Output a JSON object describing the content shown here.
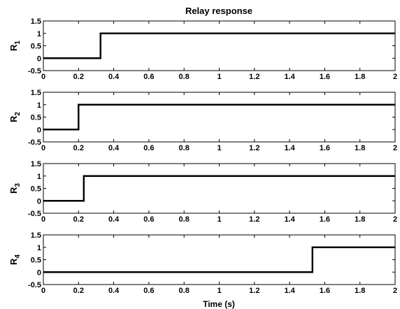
{
  "chart_data": {
    "type": "line",
    "title": "Relay response",
    "xlabel": "Time (s)",
    "xlim": [
      0,
      2
    ],
    "ylim": [
      -0.5,
      1.5
    ],
    "x_ticks": [
      0,
      0.2,
      0.4,
      0.6,
      0.8,
      1,
      1.2,
      1.4,
      1.6,
      1.8,
      2
    ],
    "x_tick_labels": [
      "0",
      "0.2",
      "0.4",
      "0.6",
      "0.8",
      "1",
      "1.2",
      "1.4",
      "1.6",
      "1.8",
      "2"
    ],
    "y_ticks": [
      -0.5,
      0,
      0.5,
      1,
      1.5
    ],
    "y_tick_labels": [
      "-0.5",
      "0",
      "0.5",
      "1",
      "1.5"
    ],
    "grid": false,
    "line_color": "#000000",
    "subplots": [
      {
        "ylabel": {
          "base": "R",
          "sub": "1"
        },
        "series": [
          {
            "x": [
              0,
              0.325,
              0.325,
              2
            ],
            "y": [
              0,
              0,
              1,
              1
            ]
          }
        ]
      },
      {
        "ylabel": {
          "base": "R",
          "sub": "2"
        },
        "series": [
          {
            "x": [
              0,
              0.2,
              0.2,
              2
            ],
            "y": [
              0,
              0,
              1,
              1
            ]
          }
        ]
      },
      {
        "ylabel": {
          "base": "R",
          "sub": "3"
        },
        "series": [
          {
            "x": [
              0,
              0.23,
              0.23,
              2
            ],
            "y": [
              0,
              0,
              1,
              1
            ]
          }
        ]
      },
      {
        "ylabel": {
          "base": "R",
          "sub": "4"
        },
        "series": [
          {
            "x": [
              0,
              1.53,
              1.53,
              2
            ],
            "y": [
              0,
              0,
              1,
              1
            ]
          }
        ]
      }
    ]
  }
}
